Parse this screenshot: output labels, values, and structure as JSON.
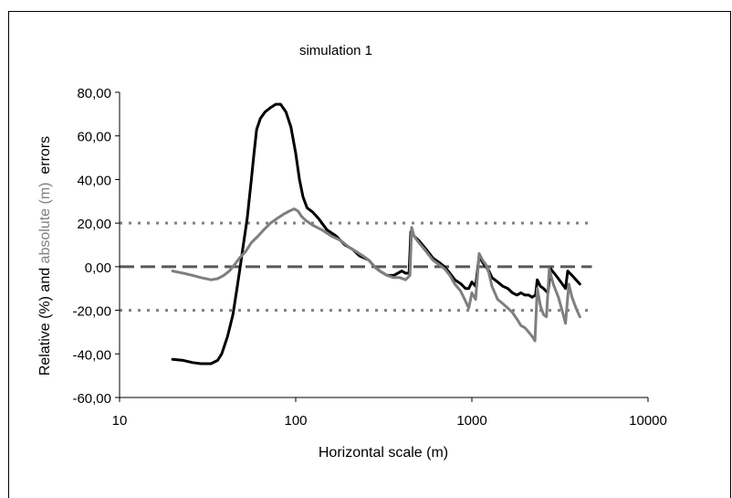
{
  "chart_data": {
    "type": "line",
    "title": "simulation 1",
    "xlabel": "Horizontal scale (m)",
    "ylabel_parts": [
      "Relative (%) and ",
      "absolute (m)",
      "  errors"
    ],
    "xscale": "log",
    "xlim": [
      10,
      10000
    ],
    "ylim": [
      -60,
      80
    ],
    "x_ticks": [
      {
        "value": 10,
        "label": "10"
      },
      {
        "value": 100,
        "label": "100"
      },
      {
        "value": 1000,
        "label": "1000"
      },
      {
        "value": 10000,
        "label": "10000"
      }
    ],
    "y_ticks": [
      {
        "value": 80,
        "label": "80,00"
      },
      {
        "value": 60,
        "label": "60,00"
      },
      {
        "value": 40,
        "label": "40,00"
      },
      {
        "value": 20,
        "label": "20,00"
      },
      {
        "value": 0,
        "label": "0,00"
      },
      {
        "value": -20,
        "label": "-20,00"
      },
      {
        "value": -40,
        "label": "-40,00"
      },
      {
        "value": -60,
        "label": "-60,00"
      }
    ],
    "grid": false,
    "reference_lines": [
      {
        "y": 20,
        "style": "dotted",
        "color": "#808080",
        "x_range": [
          10,
          4800
        ]
      },
      {
        "y": 0,
        "style": "dashed",
        "color": "#595959",
        "x_range": [
          10,
          4800
        ]
      },
      {
        "y": -20,
        "style": "dotted",
        "color": "#808080",
        "x_range": [
          10,
          4800
        ]
      }
    ],
    "series": [
      {
        "color": "#000000",
        "points": [
          [
            20,
            -42.5
          ],
          [
            23,
            -43
          ],
          [
            26,
            -44
          ],
          [
            29,
            -44.5
          ],
          [
            33,
            -44.5
          ],
          [
            36,
            -43
          ],
          [
            38,
            -40
          ],
          [
            41,
            -32
          ],
          [
            44,
            -22
          ],
          [
            46,
            -12
          ],
          [
            48,
            -2
          ],
          [
            50,
            8
          ],
          [
            53,
            22
          ],
          [
            56,
            40
          ],
          [
            58,
            52
          ],
          [
            60,
            63
          ],
          [
            63,
            68
          ],
          [
            67,
            71
          ],
          [
            72,
            73
          ],
          [
            77,
            74.5
          ],
          [
            82,
            74.5
          ],
          [
            88,
            71
          ],
          [
            94,
            64
          ],
          [
            100,
            52
          ],
          [
            105,
            40
          ],
          [
            110,
            32
          ],
          [
            116,
            27
          ],
          [
            125,
            25
          ],
          [
            135,
            22
          ],
          [
            150,
            17
          ],
          [
            170,
            14
          ],
          [
            190,
            10
          ],
          [
            210,
            8
          ],
          [
            230,
            5
          ],
          [
            260,
            3
          ],
          [
            280,
            0
          ],
          [
            300,
            -2
          ],
          [
            330,
            -4
          ],
          [
            360,
            -4
          ],
          [
            380,
            -3
          ],
          [
            400,
            -2
          ],
          [
            420,
            -3
          ],
          [
            440,
            -3
          ],
          [
            450,
            16
          ],
          [
            470,
            14
          ],
          [
            500,
            12
          ],
          [
            550,
            8
          ],
          [
            600,
            4
          ],
          [
            650,
            2
          ],
          [
            700,
            0
          ],
          [
            750,
            -3
          ],
          [
            800,
            -6
          ],
          [
            870,
            -8
          ],
          [
            920,
            -10
          ],
          [
            960,
            -10
          ],
          [
            1000,
            -7
          ],
          [
            1050,
            -9
          ],
          [
            1100,
            5
          ],
          [
            1150,
            2
          ],
          [
            1200,
            0
          ],
          [
            1250,
            -2
          ],
          [
            1300,
            -5
          ],
          [
            1400,
            -7
          ],
          [
            1500,
            -9
          ],
          [
            1600,
            -10
          ],
          [
            1700,
            -12
          ],
          [
            1800,
            -13
          ],
          [
            1900,
            -12
          ],
          [
            2000,
            -13
          ],
          [
            2100,
            -13
          ],
          [
            2200,
            -14
          ],
          [
            2300,
            -13
          ],
          [
            2350,
            -6
          ],
          [
            2450,
            -9
          ],
          [
            2550,
            -10
          ],
          [
            2700,
            -12
          ],
          [
            2800,
            -1
          ],
          [
            3000,
            -4
          ],
          [
            3200,
            -7
          ],
          [
            3400,
            -10
          ],
          [
            3500,
            -2
          ],
          [
            3700,
            -4
          ],
          [
            3900,
            -6
          ],
          [
            4100,
            -8
          ]
        ]
      },
      {
        "color": "#7f7f7f",
        "points": [
          [
            20,
            -2
          ],
          [
            23,
            -3
          ],
          [
            26,
            -4
          ],
          [
            29,
            -5
          ],
          [
            33,
            -6
          ],
          [
            36,
            -5.5
          ],
          [
            39,
            -4
          ],
          [
            42,
            -2
          ],
          [
            45,
            1
          ],
          [
            48,
            4
          ],
          [
            52,
            7
          ],
          [
            56,
            11
          ],
          [
            61,
            14
          ],
          [
            66,
            17
          ],
          [
            72,
            20
          ],
          [
            78,
            22
          ],
          [
            85,
            24
          ],
          [
            92,
            25.5
          ],
          [
            98,
            26.5
          ],
          [
            103,
            25.5
          ],
          [
            108,
            23
          ],
          [
            115,
            21
          ],
          [
            125,
            19
          ],
          [
            140,
            17
          ],
          [
            160,
            14
          ],
          [
            180,
            12
          ],
          [
            200,
            9
          ],
          [
            220,
            7
          ],
          [
            240,
            5
          ],
          [
            260,
            3
          ],
          [
            280,
            0
          ],
          [
            300,
            -2
          ],
          [
            330,
            -4
          ],
          [
            360,
            -5
          ],
          [
            390,
            -5
          ],
          [
            420,
            -6
          ],
          [
            445,
            -4
          ],
          [
            455,
            18
          ],
          [
            470,
            14
          ],
          [
            500,
            11
          ],
          [
            550,
            7
          ],
          [
            600,
            3
          ],
          [
            650,
            1
          ],
          [
            700,
            -1
          ],
          [
            750,
            -4
          ],
          [
            800,
            -8
          ],
          [
            860,
            -11
          ],
          [
            910,
            -15
          ],
          [
            960,
            -19
          ],
          [
            1000,
            -12
          ],
          [
            1050,
            -15
          ],
          [
            1100,
            6
          ],
          [
            1150,
            3
          ],
          [
            1200,
            1
          ],
          [
            1250,
            -3
          ],
          [
            1300,
            -9
          ],
          [
            1400,
            -15
          ],
          [
            1500,
            -17
          ],
          [
            1600,
            -19
          ],
          [
            1700,
            -21
          ],
          [
            1800,
            -24
          ],
          [
            1900,
            -27
          ],
          [
            2000,
            -28
          ],
          [
            2100,
            -30
          ],
          [
            2200,
            -32
          ],
          [
            2280,
            -34
          ],
          [
            2350,
            -10
          ],
          [
            2450,
            -18
          ],
          [
            2550,
            -22
          ],
          [
            2650,
            -23
          ],
          [
            2750,
            -1
          ],
          [
            2900,
            -8
          ],
          [
            3100,
            -14
          ],
          [
            3300,
            -22
          ],
          [
            3400,
            -26
          ],
          [
            3550,
            -8
          ],
          [
            3700,
            -14
          ],
          [
            3900,
            -19
          ],
          [
            4100,
            -23
          ]
        ]
      }
    ]
  },
  "colors": {
    "axis": "#000000",
    "label_gray": "#808080",
    "background": "#ffffff"
  }
}
